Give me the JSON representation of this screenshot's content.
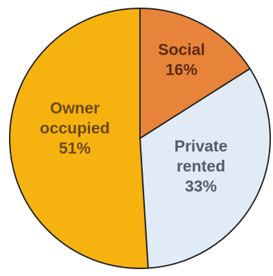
{
  "chart_data": {
    "type": "pie",
    "title": "",
    "slices": [
      {
        "lines": [
          "Social",
          "16%"
        ],
        "value": 16,
        "color": "#E8843A",
        "text_color": "#5a2a0c"
      },
      {
        "lines": [
          "Private",
          "rented",
          "33%"
        ],
        "value": 33,
        "color": "#E1EBF5",
        "text_color": "#555a66"
      },
      {
        "lines": [
          "Owner",
          "occupied",
          "51%"
        ],
        "value": 51,
        "color": "#F6B20F",
        "text_color": "#6b4a05"
      }
    ],
    "start_angle_deg": 0,
    "direction": "clockwise",
    "legend": "none",
    "labels": "inside"
  }
}
